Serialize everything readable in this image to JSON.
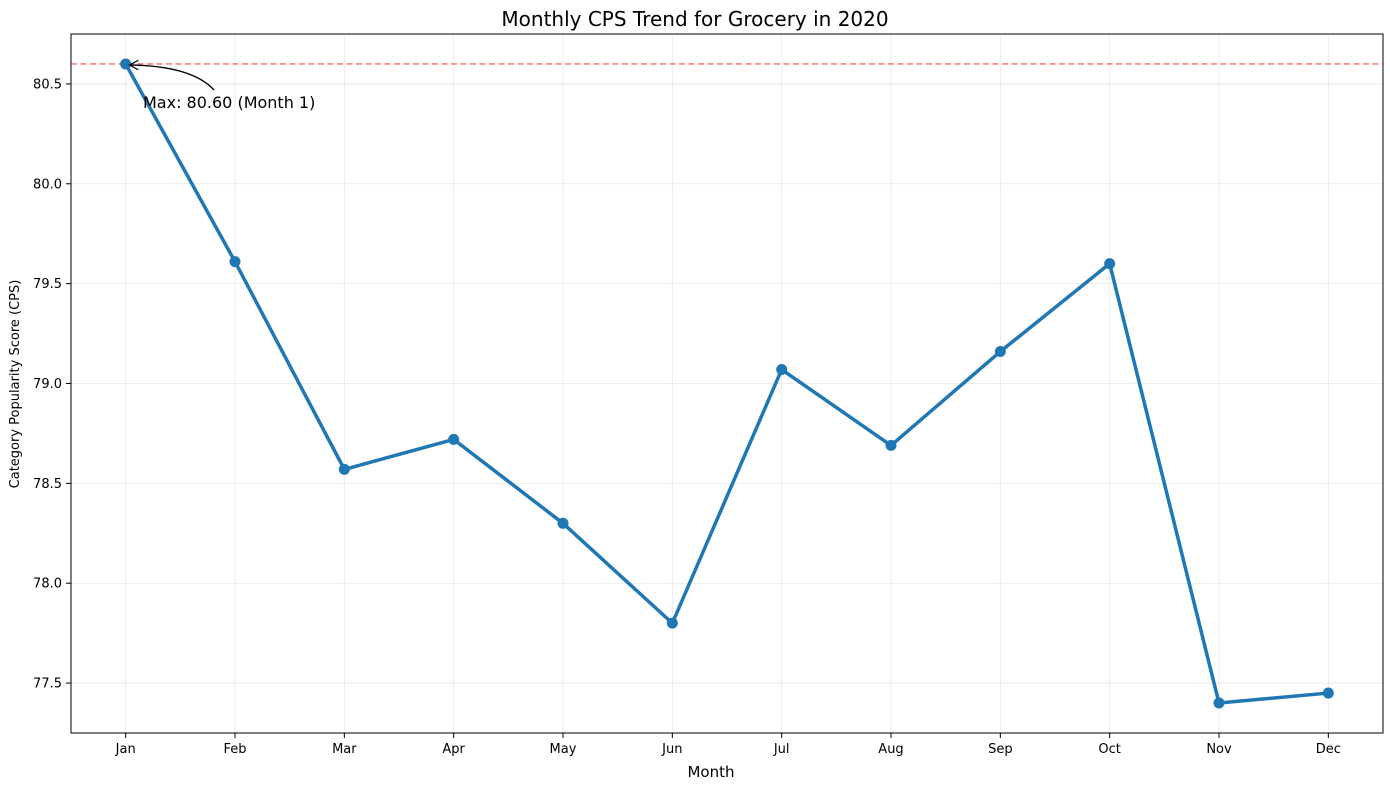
{
  "chart_data": {
    "type": "line",
    "title": "Monthly CPS Trend for Grocery in 2020",
    "xlabel": "Month",
    "ylabel": "Category Popularity Score (CPS)",
    "categories": [
      "Jan",
      "Feb",
      "Mar",
      "Apr",
      "May",
      "Jun",
      "Jul",
      "Aug",
      "Sep",
      "Oct",
      "Nov",
      "Dec"
    ],
    "series": [
      {
        "values": [
          80.6,
          79.61,
          78.57,
          78.72,
          78.3,
          77.8,
          79.07,
          78.69,
          79.16,
          79.6,
          77.4,
          77.45
        ],
        "color": "#1f77b4"
      }
    ],
    "ylim": [
      77.25,
      80.75
    ],
    "yticks": [
      77.5,
      78.0,
      78.5,
      79.0,
      79.5,
      80.0,
      80.5
    ],
    "ytick_labels": [
      "77.5",
      "78.0",
      "78.5",
      "79.0",
      "79.5",
      "80.0",
      "80.5"
    ],
    "grid": true,
    "reference_line": {
      "y": 80.6,
      "color": "#ff0000",
      "style": "dashed"
    },
    "annotation": {
      "text": "Max: 80.60 (Month 1)",
      "point_index": 0
    }
  }
}
